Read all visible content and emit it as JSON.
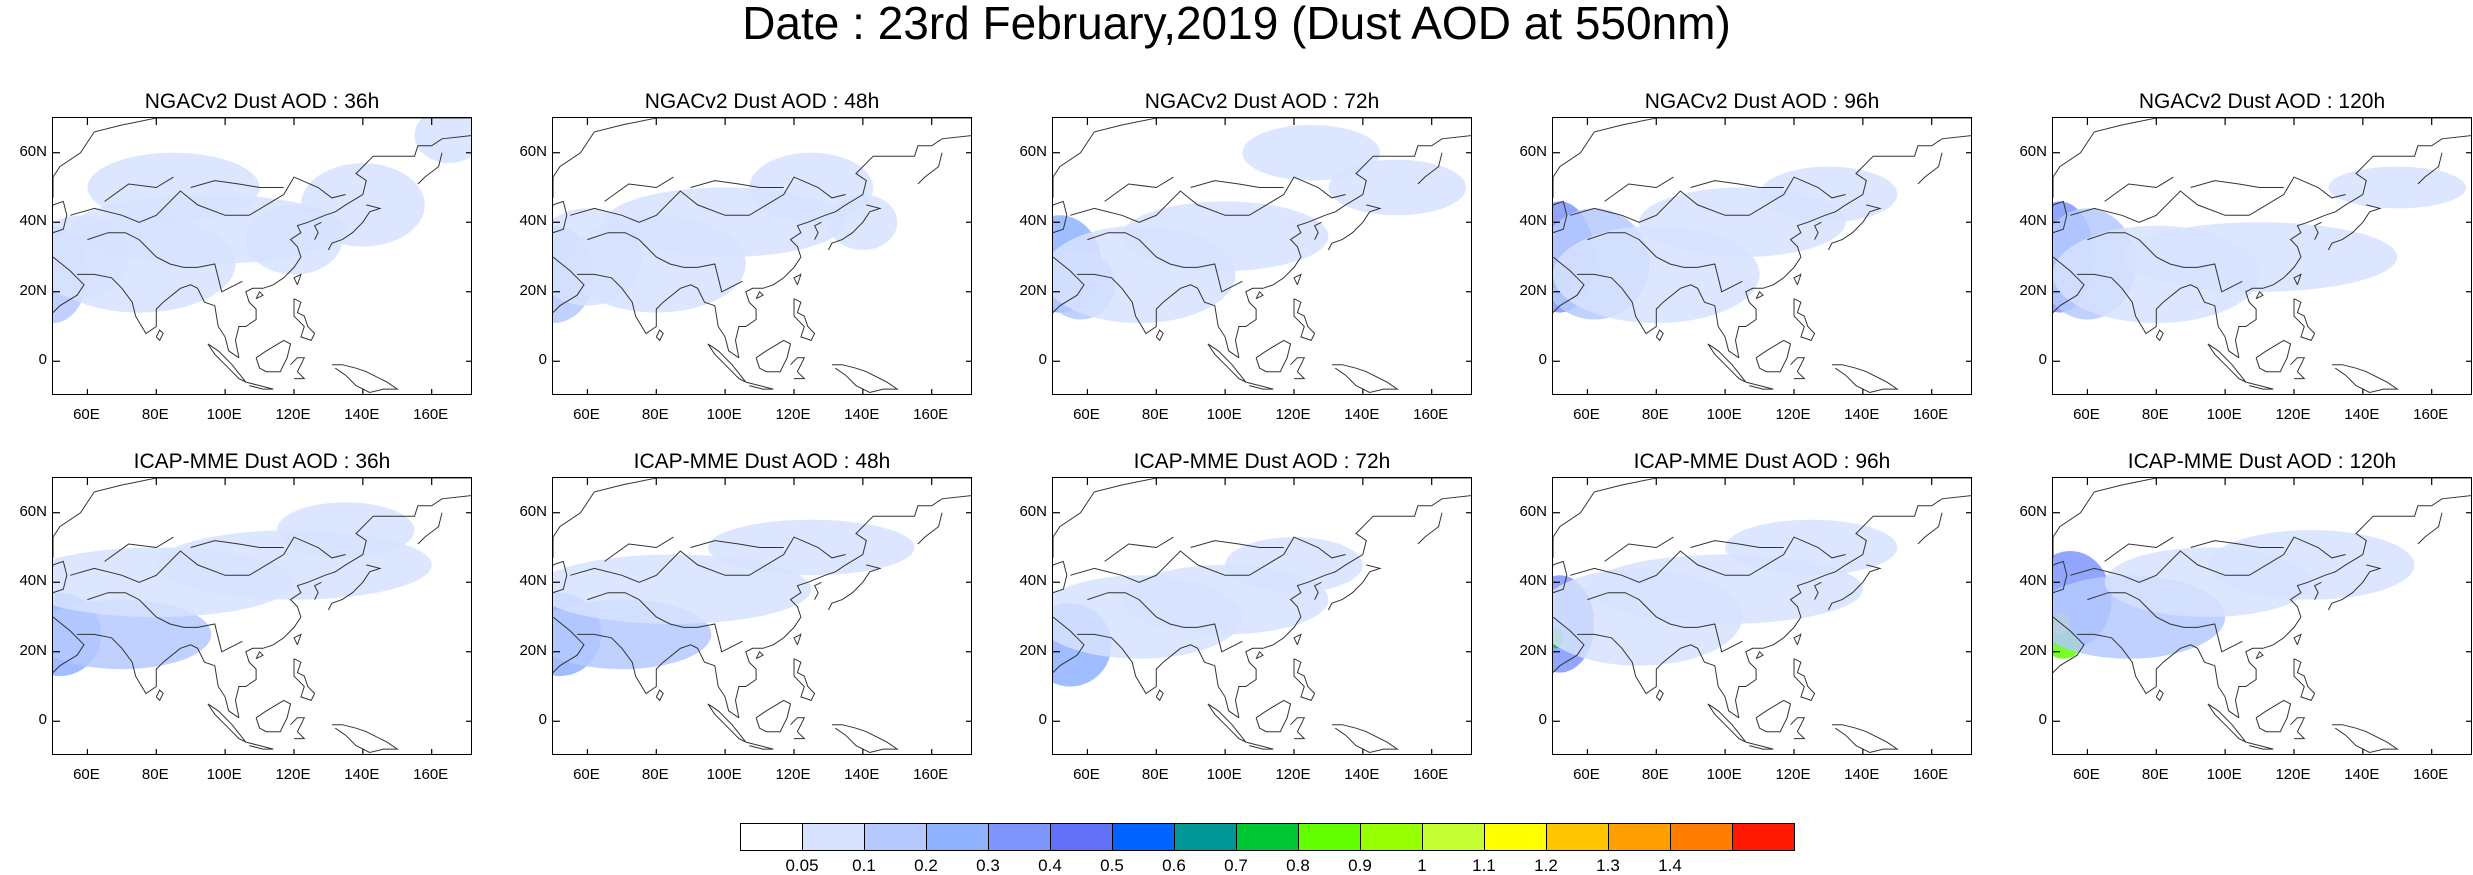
{
  "title": "Date : 23rd February,2019 (Dust AOD at 550nm)",
  "panels": [
    {
      "title": "NGACv2 Dust AOD : 36h"
    },
    {
      "title": "NGACv2 Dust AOD : 48h"
    },
    {
      "title": "NGACv2 Dust AOD : 72h"
    },
    {
      "title": "NGACv2 Dust AOD : 96h"
    },
    {
      "title": "NGACv2 Dust AOD : 120h"
    },
    {
      "title": "ICAP-MME Dust AOD : 36h"
    },
    {
      "title": "ICAP-MME Dust AOD : 48h"
    },
    {
      "title": "ICAP-MME Dust AOD : 72h"
    },
    {
      "title": "ICAP-MME Dust AOD : 96h"
    },
    {
      "title": "ICAP-MME Dust AOD : 120h"
    }
  ],
  "axes": {
    "y_ticks": [
      "60N",
      "40N",
      "20N",
      "0"
    ],
    "x_ticks": [
      "60E",
      "80E",
      "100E",
      "120E",
      "140E",
      "160E"
    ]
  },
  "colorbar": {
    "labels": [
      "0.05",
      "0.1",
      "0.2",
      "0.3",
      "0.4",
      "0.5",
      "0.6",
      "0.7",
      "0.8",
      "0.9",
      "1",
      "1.1",
      "1.2",
      "1.3",
      "1.4"
    ],
    "colors": [
      "#ffffff",
      "#d6e2ff",
      "#b5c9ff",
      "#8eb2ff",
      "#7f96ff",
      "#6370f8",
      "#0063ff",
      "#009696",
      "#00c633",
      "#63ff00",
      "#96ff00",
      "#c6ff33",
      "#ffff00",
      "#ffc600",
      "#ffa000",
      "#ff7c00",
      "#ff1900"
    ]
  }
}
